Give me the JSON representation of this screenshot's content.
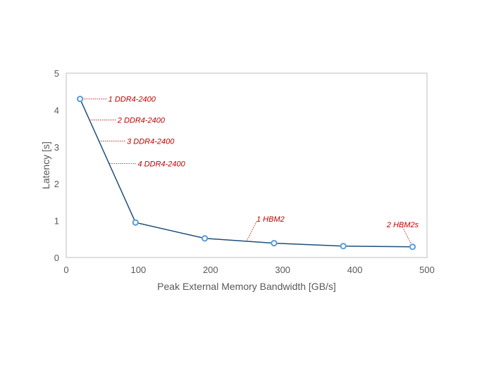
{
  "chart_data": {
    "type": "line",
    "xlabel": "Peak External Memory Bandwidth [GB/s]",
    "ylabel": "Latency [s]",
    "xlim": [
      0,
      500
    ],
    "ylim": [
      0,
      5
    ],
    "xticks": [
      0,
      100,
      200,
      300,
      400,
      500
    ],
    "yticks": [
      0,
      1,
      2,
      3,
      4,
      5
    ],
    "grid": false,
    "legend": "none",
    "series": [
      {
        "x": [
          19.2,
          96,
          192,
          288,
          384,
          480
        ],
        "y": [
          4.3,
          0.95,
          0.52,
          0.39,
          0.31,
          0.29
        ],
        "color": "#1f4e79",
        "marker_color": "#5b9bd5"
      }
    ],
    "annotations": [
      {
        "text": "1 DDR4-2400",
        "x": 19.2,
        "y": 4.3
      },
      {
        "text": "2 DDR4-2400",
        "x": 32,
        "y": 3.73
      },
      {
        "text": "3 DDR4-2400",
        "x": 45,
        "y": 3.16
      },
      {
        "text": "4 DDR4-2400",
        "x": 60,
        "y": 2.55
      },
      {
        "text": "1 HBM2",
        "x": 250,
        "y": 0.44
      },
      {
        "text": "2 HBM2s",
        "x": 480,
        "y": 0.29
      }
    ],
    "annotation_color": "#c00000"
  }
}
